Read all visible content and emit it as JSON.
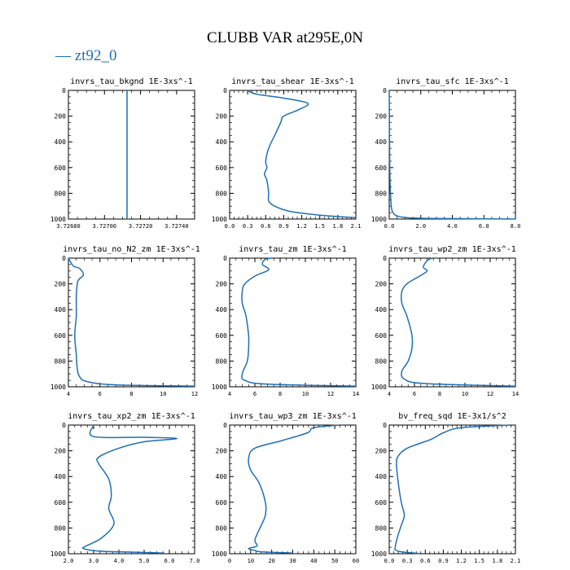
{
  "title": "CLUBB VAR at295E,0N",
  "legend": {
    "series_name": "zt92_0",
    "color": "#1f6fb5"
  },
  "chart_data": [
    {
      "type": "line",
      "title": "invrs_tau_bkgnd  1E-3xs^-1",
      "xlim": [
        3.7268,
        3.7275
      ],
      "xticks": [
        "3.72680",
        "3.72700",
        "3.72720",
        "3.72740"
      ],
      "xtick_values": [
        3.7268,
        3.727,
        3.7272,
        3.7274
      ],
      "ylim": [
        1000,
        0
      ],
      "yticks": [
        0,
        200,
        400,
        600,
        800,
        1000
      ],
      "x": [
        3.727125,
        3.727125
      ],
      "y": [
        0,
        1000
      ]
    },
    {
      "type": "line",
      "title": "invrs_tau_shear  1E-3xs^-1",
      "xlim": [
        0.0,
        2.1
      ],
      "xticks": [
        "0.0",
        "0.3",
        "0.6",
        "0.9",
        "1.2",
        "1.5",
        "1.8",
        "2.1"
      ],
      "xtick_values": [
        0.0,
        0.3,
        0.6,
        0.9,
        1.2,
        1.5,
        1.8,
        2.1
      ],
      "ylim": [
        1000,
        0
      ],
      "yticks": [
        0,
        200,
        400,
        600,
        800,
        1000
      ],
      "x": [
        0.3,
        0.45,
        0.9,
        1.3,
        1.15,
        0.9,
        0.85,
        0.75,
        0.65,
        0.6,
        0.62,
        0.58,
        0.62,
        0.65,
        0.65,
        0.75,
        1.0,
        1.5,
        2.1
      ],
      "y": [
        0,
        30,
        60,
        100,
        150,
        200,
        250,
        350,
        450,
        550,
        600,
        650,
        700,
        800,
        860,
        900,
        940,
        970,
        990
      ]
    },
    {
      "type": "line",
      "title": "invrs_tau_sfc  1E-3xs^-1",
      "xlim": [
        0.0,
        8.0
      ],
      "xticks": [
        "0.0",
        "2.0",
        "4.0",
        "6.0",
        "8.0"
      ],
      "xtick_values": [
        0.0,
        2.0,
        4.0,
        6.0,
        8.0
      ],
      "ylim": [
        1000,
        0
      ],
      "yticks": [
        0,
        200,
        400,
        600,
        800,
        1000
      ],
      "x": [
        0.0,
        0.02,
        0.05,
        0.1,
        0.15,
        0.3,
        0.6,
        1.2,
        2.5,
        8.0
      ],
      "y": [
        0,
        400,
        700,
        850,
        920,
        960,
        980,
        990,
        995,
        1000
      ]
    },
    {
      "type": "line",
      "title": "invrs_tau_no_N2_zm  1E-3xs^-1",
      "xlim": [
        4,
        12
      ],
      "xticks": [
        "4",
        "6",
        "8",
        "10",
        "12"
      ],
      "xtick_values": [
        4,
        6,
        8,
        10,
        12
      ],
      "ylim": [
        1000,
        0
      ],
      "yticks": [
        0,
        200,
        400,
        600,
        800,
        1000
      ],
      "x": [
        4.0,
        4.3,
        4.7,
        4.95,
        4.6,
        4.5,
        4.5,
        4.4,
        4.5,
        4.55,
        4.7,
        5.2,
        7.0,
        12.0
      ],
      "y": [
        0,
        60,
        80,
        130,
        180,
        300,
        450,
        600,
        750,
        850,
        920,
        960,
        985,
        995
      ]
    },
    {
      "type": "line",
      "title": "invrs_tau_zm  1E-3xs^-1",
      "xlim": [
        4,
        14
      ],
      "xticks": [
        "4",
        "6",
        "8",
        "10",
        "12",
        "14"
      ],
      "xtick_values": [
        4,
        6,
        8,
        10,
        12,
        14
      ],
      "ylim": [
        1000,
        0
      ],
      "yticks": [
        0,
        200,
        400,
        600,
        800,
        1000
      ],
      "x": [
        7.3,
        6.8,
        6.6,
        7.1,
        6.0,
        5.2,
        5.0,
        5.0,
        5.3,
        5.5,
        5.5,
        5.4,
        5.0,
        5.2,
        7.0,
        14.0
      ],
      "y": [
        0,
        10,
        50,
        90,
        140,
        200,
        260,
        350,
        450,
        600,
        700,
        800,
        900,
        950,
        980,
        995
      ]
    },
    {
      "type": "line",
      "title": "invrs_tau_wp2_zm  1E-3xs^-1",
      "xlim": [
        4,
        14
      ],
      "xticks": [
        "4",
        "6",
        "8",
        "10",
        "12",
        "14"
      ],
      "xtick_values": [
        4,
        6,
        8,
        10,
        12,
        14
      ],
      "ylim": [
        1000,
        0
      ],
      "yticks": [
        0,
        200,
        400,
        600,
        800,
        1000
      ],
      "x": [
        7.4,
        7.0,
        6.7,
        7.0,
        6.4,
        5.4,
        5.0,
        5.0,
        5.4,
        5.8,
        5.8,
        5.5,
        5.0,
        5.2,
        6.8,
        14.0
      ],
      "y": [
        0,
        20,
        70,
        100,
        140,
        200,
        260,
        350,
        450,
        600,
        700,
        800,
        880,
        940,
        975,
        995
      ]
    },
    {
      "type": "line",
      "title": "invrs_tau_xp2_zm  1E-3xs^-1",
      "xlim": [
        2.0,
        7.0
      ],
      "xticks": [
        "2.0",
        "3.0",
        "4.0",
        "5.0",
        "6.0",
        "7.0"
      ],
      "xtick_values": [
        2.0,
        3.0,
        4.0,
        5.0,
        6.0,
        7.0
      ],
      "ylim": [
        1000,
        0
      ],
      "yticks": [
        0,
        200,
        400,
        600,
        800,
        1000
      ],
      "x": [
        3.0,
        3.0,
        5.0,
        6.3,
        5.0,
        4.0,
        3.2,
        3.2,
        3.6,
        3.7,
        3.6,
        3.8,
        3.3,
        2.7,
        2.6,
        3.2,
        5.0,
        5.8
      ],
      "y": [
        0,
        90,
        95,
        105,
        130,
        180,
        250,
        300,
        420,
        550,
        650,
        770,
        880,
        940,
        960,
        980,
        990,
        995
      ]
    },
    {
      "type": "line",
      "title": "invrs_tau_wp3_zm  1E-3xs^-1",
      "xlim": [
        0,
        60
      ],
      "xticks": [
        "0",
        "10",
        "20",
        "30",
        "40",
        "50",
        "60"
      ],
      "xtick_values": [
        0,
        10,
        20,
        30,
        40,
        50,
        60
      ],
      "ylim": [
        1000,
        0
      ],
      "yticks": [
        0,
        200,
        400,
        600,
        800,
        1000
      ],
      "x": [
        52,
        40,
        37,
        25,
        12,
        9,
        10,
        14,
        17,
        17,
        15,
        13,
        12,
        13,
        9,
        12,
        15,
        30
      ],
      "y": [
        0,
        20,
        60,
        120,
        180,
        260,
        350,
        450,
        600,
        700,
        780,
        850,
        900,
        940,
        960,
        975,
        985,
        995
      ]
    },
    {
      "type": "line",
      "title": "bv_freq_sqd  1E-3x1/s^2",
      "xlim": [
        0.0,
        2.1
      ],
      "xticks": [
        "0.0",
        "0.3",
        "0.6",
        "0.9",
        "1.2",
        "1.5",
        "1.8",
        "2.1"
      ],
      "xtick_values": [
        0.0,
        0.3,
        0.6,
        0.9,
        1.2,
        1.5,
        1.8,
        2.1
      ],
      "ylim": [
        1000,
        0
      ],
      "yticks": [
        0,
        200,
        400,
        600,
        800,
        1000
      ],
      "x": [
        2.0,
        1.2,
        0.9,
        0.7,
        0.3,
        0.15,
        0.12,
        0.15,
        0.2,
        0.25,
        0.2,
        0.15,
        0.12,
        0.1,
        0.1,
        0.2,
        0.35,
        0.5
      ],
      "y": [
        0,
        20,
        60,
        110,
        180,
        240,
        300,
        450,
        600,
        700,
        780,
        850,
        900,
        950,
        970,
        985,
        992,
        998
      ]
    }
  ]
}
